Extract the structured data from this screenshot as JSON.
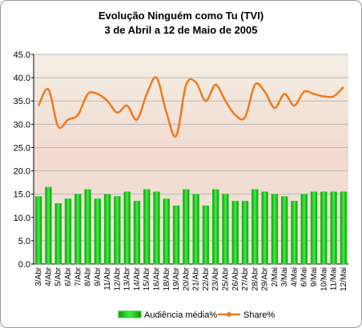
{
  "chart_data": {
    "type": "bar_line",
    "title": "Evolução Ninguém como Tu (TVI)",
    "subtitle": "3 de Abril a 12 de Maio de 2005",
    "categories": [
      "3/Abr",
      "4/Abr",
      "5/Abr",
      "6/Abr",
      "7/Abr",
      "8/Abr",
      "9/Abr",
      "11/Abr",
      "12/Abr",
      "13/Abr",
      "14/Abr",
      "15/Abr",
      "16/Abr",
      "18/Abr",
      "19/Abr",
      "20/Abr",
      "21/Abr",
      "22/Abr",
      "23/Abr",
      "25/Abr",
      "26/Abr",
      "27/Abr",
      "28/Abr",
      "29/Abr",
      "2/Mai",
      "3/Mai",
      "4/Mai",
      "6/Mai",
      "9/Mai",
      "10/Mai",
      "11/Mai",
      "12/Mai"
    ],
    "series": [
      {
        "name": "Audiência média%",
        "type": "bar",
        "color": "#22cc22",
        "values": [
          14.5,
          16.5,
          13,
          14,
          15,
          16,
          14,
          15,
          14.5,
          15.5,
          13.5,
          16,
          15.5,
          14,
          12.5,
          16,
          15,
          12.5,
          16,
          15,
          13.5,
          13.5,
          16,
          15.5,
          15,
          14.5,
          13.5,
          15,
          15.5,
          15.5,
          15.5,
          15.5
        ]
      },
      {
        "name": "Share%",
        "type": "line",
        "color": "#f07a1a",
        "values": [
          34,
          37.5,
          29.5,
          31,
          32,
          36.5,
          36.5,
          35,
          32.5,
          34,
          31,
          36.5,
          40,
          32.5,
          27.5,
          38.5,
          39,
          35,
          38.5,
          35,
          32,
          31.5,
          38.5,
          37,
          33.5,
          36.5,
          34,
          37,
          36.5,
          36,
          36,
          38
        ]
      }
    ],
    "ylim": [
      0,
      45
    ],
    "yticks": [
      {
        "value": 0,
        "label": "0.0"
      },
      {
        "value": 5,
        "label": "5.0"
      },
      {
        "value": 10,
        "label": "10.0"
      },
      {
        "value": 15,
        "label": "15.0"
      },
      {
        "value": 20,
        "label": "20.0"
      },
      {
        "value": 25,
        "label": "25.0"
      },
      {
        "value": 30,
        "label": "30.0"
      },
      {
        "value": 35,
        "label": "35.0"
      },
      {
        "value": 40,
        "label": "40.0"
      },
      {
        "value": 45,
        "label": "45.0"
      }
    ],
    "grid": true
  }
}
